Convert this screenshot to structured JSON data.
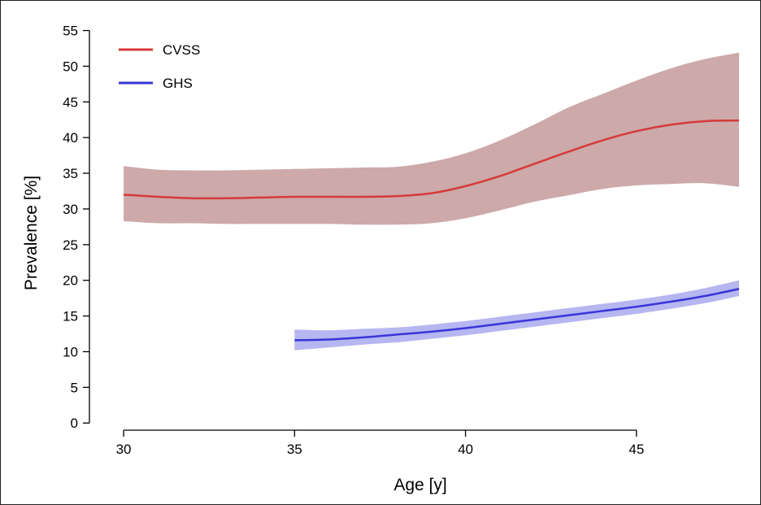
{
  "chart_data": {
    "type": "line",
    "title": "",
    "xlabel": "Age [y]",
    "ylabel": "Prevalence [%]",
    "xlim": [
      29,
      48.5
    ],
    "ylim": [
      -1,
      57
    ],
    "xticks": [
      30,
      35,
      40,
      45
    ],
    "yticks": [
      0,
      5,
      10,
      15,
      20,
      25,
      30,
      35,
      40,
      45,
      50,
      55
    ],
    "grid": false,
    "legend": "top-left",
    "series": [
      {
        "name": "CVSS",
        "color": "#d63a3a",
        "band_color": "#c49a9a",
        "x": [
          30,
          31,
          32,
          33,
          34,
          35,
          36,
          37,
          38,
          39,
          40,
          41,
          42,
          43,
          44,
          45,
          46,
          47,
          48
        ],
        "y": [
          32.0,
          31.7,
          31.5,
          31.5,
          31.6,
          31.7,
          31.7,
          31.7,
          31.8,
          32.2,
          33.2,
          34.6,
          36.3,
          38.0,
          39.6,
          40.9,
          41.8,
          42.3,
          42.4
        ],
        "lower": [
          28.3,
          28.0,
          28.0,
          27.9,
          27.9,
          27.9,
          27.9,
          27.8,
          27.8,
          28.0,
          28.7,
          29.8,
          31.0,
          31.9,
          32.8,
          33.3,
          33.5,
          33.6,
          33.1
        ],
        "upper": [
          36.0,
          35.5,
          35.4,
          35.4,
          35.5,
          35.6,
          35.7,
          35.8,
          35.9,
          36.6,
          37.8,
          39.6,
          41.8,
          44.2,
          46.1,
          48.0,
          49.7,
          51.0,
          51.9
        ]
      },
      {
        "name": "GHS",
        "color": "#3a35d6",
        "band_color": "#a9a9ee",
        "x": [
          35,
          36,
          37,
          38,
          39,
          40,
          41,
          42,
          43,
          44,
          45,
          46,
          47,
          48
        ],
        "y": [
          11.6,
          11.7,
          12.0,
          12.4,
          12.8,
          13.3,
          13.9,
          14.5,
          15.1,
          15.7,
          16.3,
          17.0,
          17.8,
          18.8
        ],
        "lower": [
          10.2,
          10.6,
          11.0,
          11.3,
          11.8,
          12.3,
          12.9,
          13.5,
          14.1,
          14.7,
          15.3,
          16.0,
          16.8,
          17.8
        ],
        "upper": [
          13.1,
          13.0,
          13.2,
          13.4,
          13.8,
          14.3,
          14.9,
          15.5,
          16.1,
          16.7,
          17.3,
          18.0,
          18.9,
          20.0
        ]
      }
    ]
  }
}
